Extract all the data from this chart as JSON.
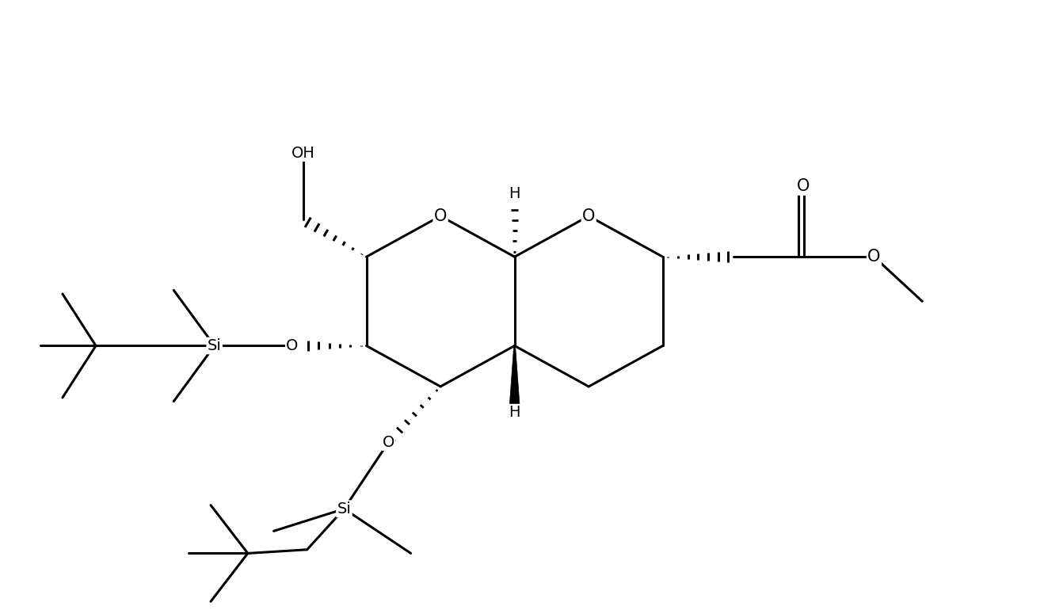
{
  "background": "#ffffff",
  "lc": "#000000",
  "lw": 2.2,
  "fs": 14,
  "figsize": [
    13.18,
    7.7
  ],
  "dpi": 100,
  "xlim": [
    -0.5,
    13.0
  ],
  "ylim": [
    -0.2,
    8.0
  ]
}
